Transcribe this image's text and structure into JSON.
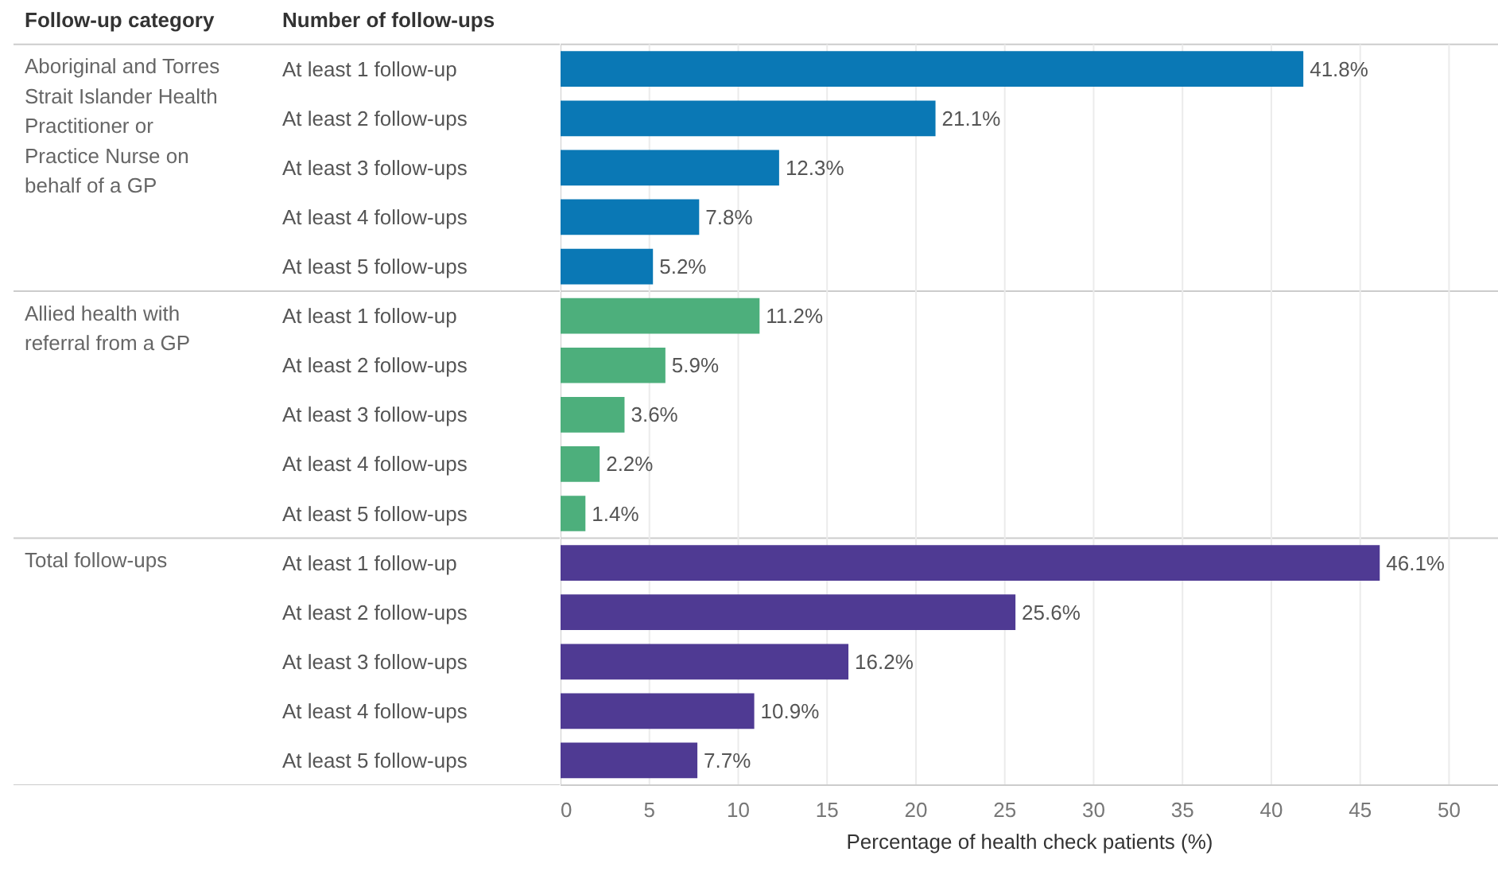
{
  "chart_data": {
    "type": "bar",
    "orientation": "horizontal",
    "legend_title": "Follow-up category",
    "ylabel": "Number of follow-ups",
    "xlabel": "Percentage of health check patients (%)",
    "categories": [
      "At least 1 follow-up",
      "At least 2 follow-ups",
      "At least 3 follow-ups",
      "At least 4 follow-ups",
      "At least 5 follow-ups",
      "At least 1 follow-up",
      "At least 2 follow-ups",
      "At least 3 follow-ups",
      "At least 4 follow-ups",
      "At least 5 follow-ups",
      "At least 1 follow-up",
      "At least 2 follow-ups",
      "At least 3 follow-ups",
      "At least 4 follow-ups",
      "At least 5 follow-ups"
    ],
    "series": [
      {
        "name": "Aboriginal and Torres Strait Islander Health Practitioner or Practice Nurse on behalf of a GP",
        "color": "#0a78b5",
        "values": [
          41.8,
          21.1,
          12.3,
          7.8,
          5.2,
          null,
          null,
          null,
          null,
          null,
          null,
          null,
          null,
          null,
          null
        ],
        "value_labels": [
          "41.8%",
          "21.1%",
          "12.3%",
          "7.8%",
          "5.2%",
          null,
          null,
          null,
          null,
          null,
          null,
          null,
          null,
          null,
          null
        ]
      },
      {
        "name": "Allied health with referral from a GP",
        "color": "#4daf7c",
        "values": [
          null,
          null,
          null,
          null,
          null,
          11.2,
          5.9,
          3.6,
          2.2,
          1.4,
          null,
          null,
          null,
          null,
          null
        ],
        "value_labels": [
          null,
          null,
          null,
          null,
          null,
          "11.2%",
          "5.9%",
          "3.6%",
          "2.2%",
          "1.4%",
          null,
          null,
          null,
          null,
          null
        ]
      },
      {
        "name": "Total follow-ups",
        "color": "#4f3a93",
        "values": [
          null,
          null,
          null,
          null,
          null,
          null,
          null,
          null,
          null,
          null,
          46.1,
          25.6,
          16.2,
          10.9,
          7.7
        ],
        "value_labels": [
          null,
          null,
          null,
          null,
          null,
          null,
          null,
          null,
          null,
          null,
          "46.1%",
          "25.6%",
          "16.2%",
          "10.9%",
          "7.7%"
        ]
      }
    ],
    "xlim": [
      0,
      52.8
    ],
    "xticks": [
      0,
      5,
      10,
      15,
      20,
      25,
      30,
      35,
      40,
      45,
      50
    ],
    "grid": "x"
  }
}
